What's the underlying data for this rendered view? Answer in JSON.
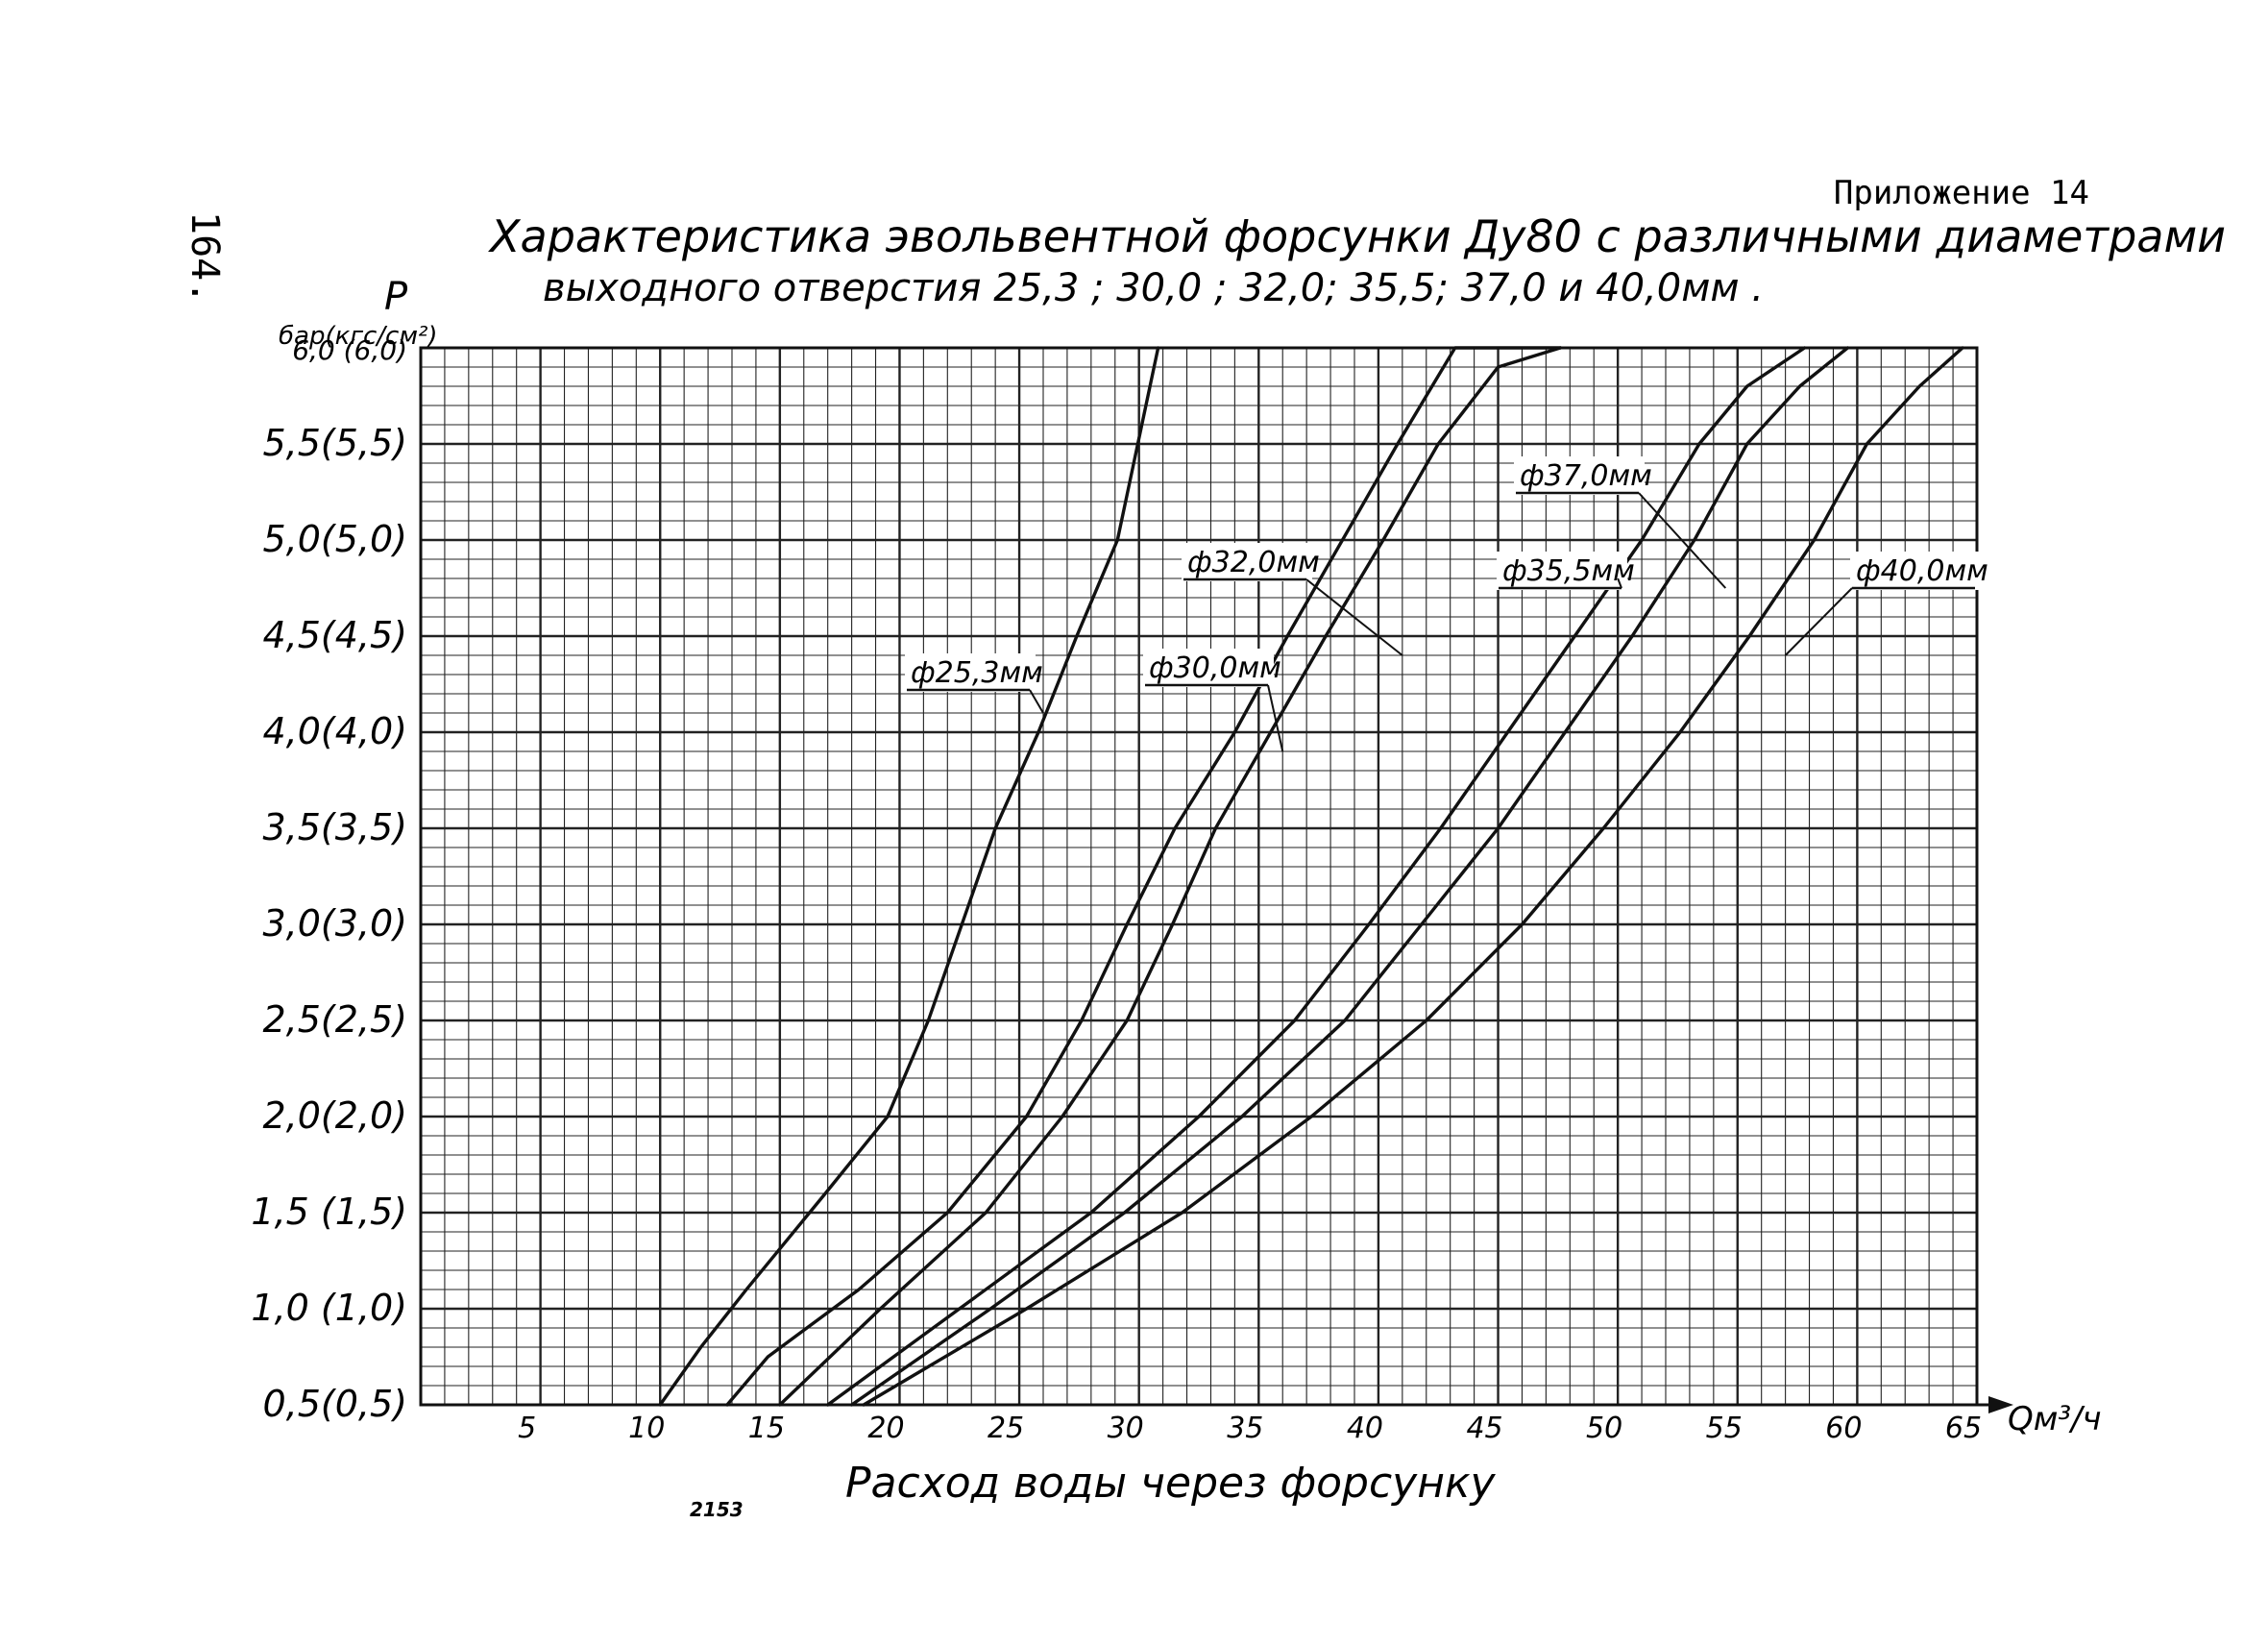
{
  "page": {
    "appendix_label": "Приложение 14",
    "page_number": "164.",
    "scribble": "2153"
  },
  "chart_data": {
    "type": "line",
    "title_line1": "Характеристика эвольвентной форсунки Ду80 с различными диаметрами",
    "title_line2": "выходного   отверстия  25,3 ; 30,0 ; 32,0;  35,5;  37,0  и  40,0мм .",
    "ylabel_symbol": "P",
    "ylabel_units": "бар(кгс/см²)",
    "xlabel": "Расход  воды  через  форсунку",
    "xaxis_unit": "Qм³/ч",
    "xlim": [
      0,
      65
    ],
    "ylim": [
      0.5,
      6.0
    ],
    "grid": true,
    "x_ticks": [
      "5",
      "10",
      "15",
      "20",
      "25",
      "30",
      "35",
      "40",
      "45",
      "50",
      "55",
      "60",
      "65"
    ],
    "y_ticks": [
      {
        "value": 0.5,
        "label": "0,5(0,5)"
      },
      {
        "value": 1.0,
        "label": "1,0 (1,0)"
      },
      {
        "value": 1.5,
        "label": "1,5 (1,5)"
      },
      {
        "value": 2.0,
        "label": "2,0(2,0)"
      },
      {
        "value": 2.5,
        "label": "2,5(2,5)"
      },
      {
        "value": 3.0,
        "label": "3,0(3,0)"
      },
      {
        "value": 3.5,
        "label": "3,5(3,5)"
      },
      {
        "value": 4.0,
        "label": "4,0(4,0)"
      },
      {
        "value": 4.5,
        "label": "4,5(4,5)"
      },
      {
        "value": 5.0,
        "label": "5,0(5,0)"
      },
      {
        "value": 5.5,
        "label": "5,5(5,5)"
      },
      {
        "value": 6.0,
        "label": "6,0 (6,0)"
      }
    ],
    "series": [
      {
        "name": "ф25,3мм",
        "x": [
          10.0,
          11.7,
          13.6,
          16.9,
          19.5,
          21.2,
          22.6,
          24.0,
          25.8,
          27.4,
          29.1,
          30.8
        ],
        "y": [
          0.5,
          0.8,
          1.1,
          1.6,
          2.0,
          2.5,
          3.0,
          3.5,
          4.0,
          4.5,
          5.0,
          6.0
        ]
      },
      {
        "name": "ф30,0мм",
        "x": [
          12.8,
          14.5,
          18.3,
          22.0,
          25.3,
          27.6,
          29.5,
          31.5,
          34.0,
          36.2,
          38.5,
          40.8,
          43.2,
          47.6
        ],
        "y": [
          0.5,
          0.75,
          1.1,
          1.5,
          2.0,
          2.5,
          3.0,
          3.5,
          4.0,
          4.5,
          5.0,
          5.5,
          6.0,
          6.0
        ]
      },
      {
        "name": "ф32,0мм",
        "x": [
          15.0,
          19.2,
          23.6,
          26.8,
          29.5,
          31.4,
          33.2,
          35.5,
          37.8,
          40.2,
          42.5,
          45.0,
          47.6
        ],
        "y": [
          0.5,
          1.0,
          1.5,
          2.0,
          2.5,
          3.0,
          3.5,
          4.0,
          4.5,
          5.0,
          5.5,
          5.9,
          6.0
        ]
      },
      {
        "name": "ф35,5мм",
        "x": [
          17.0,
          22.5,
          28.0,
          32.5,
          36.5,
          39.6,
          42.6,
          45.4,
          48.2,
          51.0,
          53.4,
          55.4,
          57.8
        ],
        "y": [
          0.5,
          1.0,
          1.5,
          2.0,
          2.5,
          3.0,
          3.5,
          4.0,
          4.5,
          5.0,
          5.5,
          5.8,
          6.0
        ]
      },
      {
        "name": "ф37,0мм",
        "x": [
          18.0,
          23.8,
          29.4,
          34.3,
          38.6,
          41.8,
          45.0,
          47.8,
          50.6,
          53.2,
          55.4,
          57.6,
          59.6
        ],
        "y": [
          0.5,
          1.0,
          1.5,
          2.0,
          2.5,
          3.0,
          3.5,
          4.0,
          4.5,
          5.0,
          5.5,
          5.8,
          6.0
        ]
      },
      {
        "name": "ф40,0мм",
        "x": [
          18.5,
          25.3,
          31.8,
          37.2,
          42.0,
          46.0,
          49.4,
          52.6,
          55.5,
          58.2,
          60.4,
          62.6,
          64.4
        ],
        "y": [
          0.5,
          1.0,
          1.5,
          2.0,
          2.5,
          3.0,
          3.5,
          4.0,
          4.5,
          5.0,
          5.5,
          5.8,
          6.0
        ]
      }
    ],
    "annotations": [
      {
        "label": "ф25,3мм",
        "points_to": [
          26.0,
          4.1
        ]
      },
      {
        "label": "ф30,0мм",
        "points_to": [
          36.0,
          3.9
        ]
      },
      {
        "label": "ф32,0мм",
        "points_to": [
          41.0,
          4.4
        ]
      },
      {
        "label": "ф35,5мм",
        "points_to": [
          50.0,
          4.8
        ]
      },
      {
        "label": "ф37,0мм",
        "points_to": [
          54.5,
          4.75
        ]
      },
      {
        "label": "ф40,0мм",
        "points_to": [
          57.0,
          4.4
        ]
      }
    ]
  }
}
